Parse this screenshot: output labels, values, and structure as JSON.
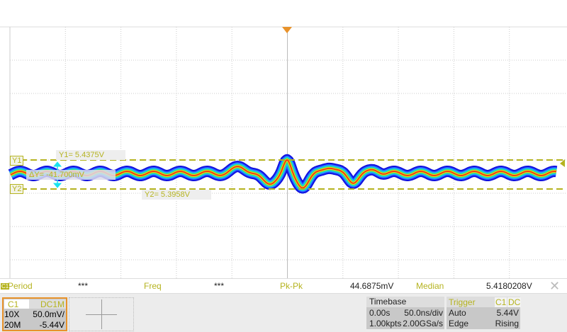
{
  "colors": {
    "cursor": "#b5b31f",
    "trigger": "#e8922a",
    "delta_arrow": "#19e3f0"
  },
  "cursors": {
    "y1_tag": "Y1",
    "y2_tag": "Y2",
    "y1": "Y1= 5.4375V",
    "y2": "Y2= 5.3958V",
    "delta": "ΔY= -41.700mV"
  },
  "measurements": {
    "channel_badge": "C1",
    "items": [
      {
        "label": "Period",
        "value": "***"
      },
      {
        "label": "Freq",
        "value": "***"
      },
      {
        "label": "Pk-Pk",
        "value": "44.6875mV"
      },
      {
        "label": "Median",
        "value": "5.4180208V"
      }
    ],
    "close_icon": "close-icon"
  },
  "channel": {
    "name": "C1",
    "coupling": "DC1M",
    "probe": "10X",
    "scale": "50.0mV/",
    "bandwidth": "20M",
    "offset": "-5.44V"
  },
  "timebase": {
    "title": "Timebase",
    "delay": "0.00s",
    "scale": "50.0ns/div",
    "points": "1.00kpts",
    "rate": "2.00GSa/s"
  },
  "trigger": {
    "title": "Trigger",
    "source": "C1",
    "coupling": "DC",
    "mode": "Auto",
    "level": "5.44V",
    "type": "Edge",
    "slope": "Rising"
  }
}
